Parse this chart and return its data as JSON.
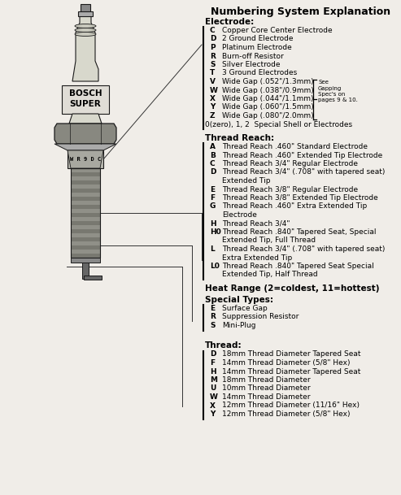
{
  "title": "Numbering System Explanation",
  "background_color": "#f0ede8",
  "sections": [
    {
      "heading": "Electrode:",
      "items": [
        [
          "C",
          "Copper Core Center Electrode"
        ],
        [
          "D",
          "2 Ground Electrode"
        ],
        [
          "P",
          "Platinum Electrode"
        ],
        [
          "R",
          "Burn-off Resistor"
        ],
        [
          "S",
          "Silver Electrode"
        ],
        [
          "T",
          "3 Ground Electrodes"
        ],
        [
          "V",
          "Wide Gap (.052\"/1.3mm)"
        ],
        [
          "W",
          "Wide Gap (.038\"/0.9mm)"
        ],
        [
          "X",
          "Wide Gap (.044\"/1.1mm)"
        ],
        [
          "Y",
          "Wide Gap (.060\"/1.5mm)"
        ],
        [
          "Z",
          "Wide Gap (.080\"/2.0mm)"
        ]
      ],
      "extra": "0(zero), 1, 2  Special Shell or Electrodes",
      "brace_note": "See\nGapping\nSpec's on\npages 9 & 10."
    },
    {
      "heading": "Thread Reach:",
      "items": [
        [
          "A",
          "Thread Reach .460\" Standard Electrode"
        ],
        [
          "B",
          "Thread Reach .460\" Extended Tip Electrode"
        ],
        [
          "C",
          "Thread Reach 3/4\" Regular Electrode"
        ],
        [
          "D",
          "Thread Reach 3/4\" (.708\" with tapered seat)\nExtended Tip"
        ],
        [
          "E",
          "Thread Reach 3/8\" Regular Electrode"
        ],
        [
          "F",
          "Thread Reach 3/8\" Extended Tip Electrode"
        ],
        [
          "G",
          "Thread Reach .460\" Extra Extended Tip\nElectrode"
        ],
        [
          "H",
          "Thread Reach 3/4\""
        ],
        [
          "H0",
          "Thread Reach .840\" Tapered Seat, Special\nExtended Tip, Full Thread"
        ],
        [
          "L",
          "Thread Reach 3/4\" (.708\" with tapered seat)\nExtra Extended Tip"
        ],
        [
          "L0",
          "Thread Reach .840\" Tapered Seat Special\nExtended Tip, Half Thread"
        ]
      ]
    },
    {
      "heading": "Heat Range (2=coldest, 11=hottest)"
    },
    {
      "heading": "Special Types:",
      "items": [
        [
          "E",
          "Surface Gap"
        ],
        [
          "R",
          "Suppression Resistor"
        ],
        [
          "S",
          "Mini-Plug"
        ]
      ]
    },
    {
      "heading": "Thread:",
      "items": [
        [
          "D",
          "18mm Thread Diameter Tapered Seat"
        ],
        [
          "F",
          "14mm Thread Diameter (5/8\" Hex)"
        ],
        [
          "H",
          "14mm Thread Diameter Tapered Seat"
        ],
        [
          "M",
          "18mm Thread Diameter"
        ],
        [
          "U",
          "10mm Thread Diameter"
        ],
        [
          "W",
          "14mm Thread Diameter"
        ],
        [
          "X",
          "12mm Thread Diameter (11/16\" Hex)"
        ],
        [
          "Y",
          "12mm Thread Diameter (5/8\" Hex)"
        ]
      ]
    }
  ]
}
